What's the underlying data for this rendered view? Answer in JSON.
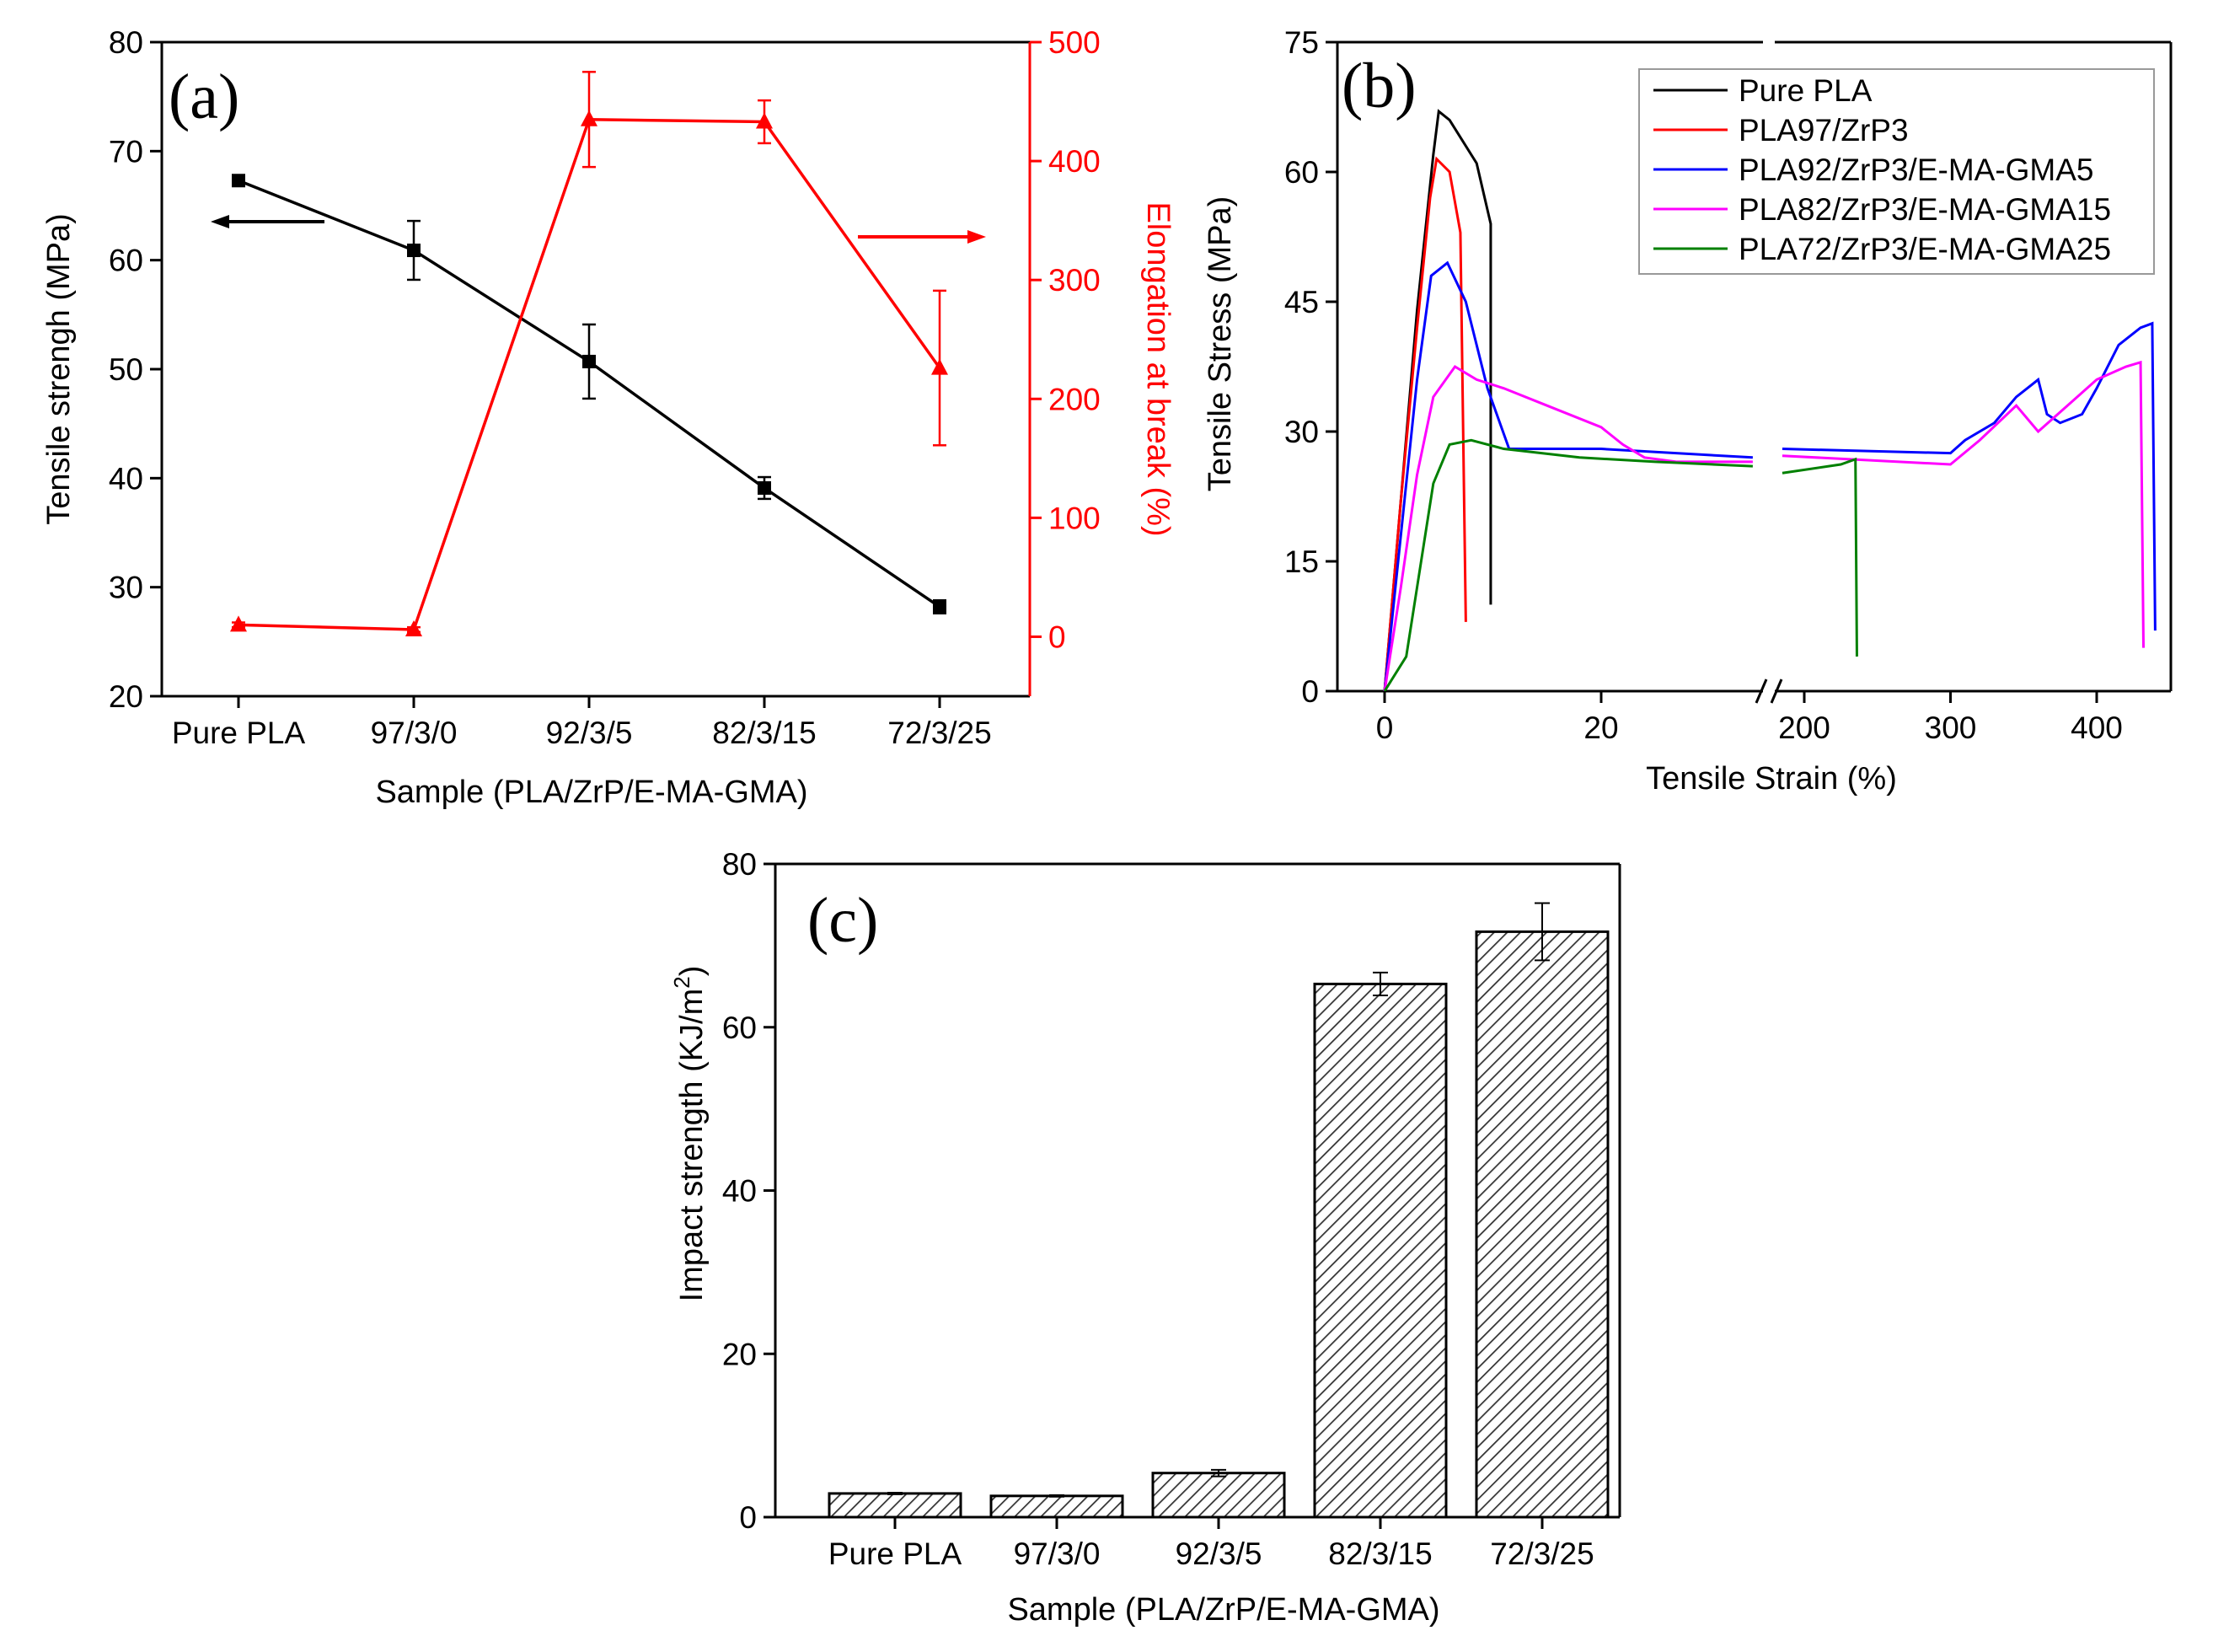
{
  "chart_data": [
    {
      "panel": "(a)",
      "type": "line",
      "categories": [
        "Pure PLA",
        "97/3/0",
        "92/3/5",
        "82/3/15",
        "72/3/25"
      ],
      "xlabel": "Sample (PLA/ZrP/E-MA-GMA)",
      "ylabel": "Tensile strengh (MPa)",
      "ylim": [
        20,
        80
      ],
      "yticks": [
        20,
        30,
        40,
        50,
        60,
        70,
        80
      ],
      "y2label": "Elongation at break (%)",
      "y2lim": [
        -50,
        500
      ],
      "y2ticks": [
        0,
        100,
        200,
        300,
        400,
        500
      ],
      "series": [
        {
          "name": "Tensile strength",
          "axis": "left",
          "color": "#000000",
          "marker": "square",
          "values": [
            67.3,
            60.9,
            50.7,
            39.1,
            28.2
          ],
          "errors": [
            0.4,
            2.7,
            3.4,
            1.0,
            0.6
          ]
        },
        {
          "name": "Elongation at break",
          "axis": "right",
          "color": "#ff0000",
          "marker": "triangle",
          "values": [
            10,
            6,
            435,
            433,
            226
          ],
          "errors": [
            2,
            2,
            40,
            18,
            65
          ]
        }
      ]
    },
    {
      "panel": "(b)",
      "type": "line",
      "xlabel": "Tensile Strain (%)",
      "ylabel": "Tensile Stress (MPa)",
      "ylim": [
        0,
        75
      ],
      "yticks": [
        0,
        15,
        30,
        45,
        60,
        75
      ],
      "x_segments": [
        [
          -4,
          34
        ],
        [
          170,
          450
        ]
      ],
      "xticks": [
        0,
        20,
        200,
        300,
        400
      ],
      "series": [
        {
          "name": "Pure PLA",
          "color": "#000000",
          "points": [
            [
              0,
              0
            ],
            [
              1.5,
              22
            ],
            [
              3,
              44
            ],
            [
              4.5,
              62
            ],
            [
              5,
              67
            ],
            [
              6,
              66
            ],
            [
              8.5,
              61
            ],
            [
              9.8,
              54
            ],
            [
              9.8,
              10
            ]
          ]
        },
        {
          "name": "PLA97/ZrP3",
          "color": "#ff0000",
          "points": [
            [
              0,
              0
            ],
            [
              1.5,
              22
            ],
            [
              3,
              42
            ],
            [
              4.2,
              57
            ],
            [
              4.8,
              61.5
            ],
            [
              6,
              60
            ],
            [
              7,
              53
            ],
            [
              7.5,
              8
            ]
          ]
        },
        {
          "name": "PLA92/ZrP3/E-MA-GMA5",
          "color": "#0000ff",
          "points": [
            [
              0,
              0
            ],
            [
              1.5,
              18
            ],
            [
              3,
              36
            ],
            [
              4.3,
              48
            ],
            [
              5.8,
              49.5
            ],
            [
              7.5,
              45
            ],
            [
              9.5,
              35
            ],
            [
              11.5,
              28
            ],
            [
              20,
              28
            ],
            [
              34,
              27
            ],
            [
              185,
              28
            ],
            [
              300,
              27.5
            ],
            [
              310,
              29
            ],
            [
              330,
              31
            ],
            [
              345,
              34
            ],
            [
              360,
              36
            ],
            [
              366,
              32
            ],
            [
              375,
              31
            ],
            [
              390,
              32
            ],
            [
              400,
              35
            ],
            [
              415,
              40
            ],
            [
              430,
              42
            ],
            [
              438,
              42.5
            ],
            [
              440,
              7
            ]
          ]
        },
        {
          "name": "PLA82/ZrP3/E-MA-GMA15",
          "color": "#ff00ff",
          "points": [
            [
              0,
              0
            ],
            [
              1.5,
              12
            ],
            [
              3,
              25
            ],
            [
              4.5,
              34
            ],
            [
              6.5,
              37.5
            ],
            [
              8.5,
              36
            ],
            [
              11,
              35
            ],
            [
              15,
              33
            ],
            [
              20,
              30.5
            ],
            [
              22,
              28.5
            ],
            [
              24,
              27
            ],
            [
              27,
              26.5
            ],
            [
              34,
              26.5
            ],
            [
              185,
              27.2
            ],
            [
              300,
              26.2
            ],
            [
              320,
              29
            ],
            [
              345,
              33
            ],
            [
              360,
              30
            ],
            [
              380,
              33
            ],
            [
              400,
              36
            ],
            [
              420,
              37.5
            ],
            [
              430,
              38
            ],
            [
              432,
              5
            ]
          ]
        },
        {
          "name": "PLA72/ZrP3/E-MA-GMA25",
          "color": "#008000",
          "points": [
            [
              0,
              0
            ],
            [
              2,
              4
            ],
            [
              3,
              12
            ],
            [
              4.5,
              24
            ],
            [
              6,
              28.5
            ],
            [
              8,
              29
            ],
            [
              11,
              28
            ],
            [
              18,
              27
            ],
            [
              25,
              26.5
            ],
            [
              34,
              26
            ],
            [
              185,
              25.2
            ],
            [
              225,
              26.2
            ],
            [
              235,
              26.8
            ],
            [
              236,
              4
            ]
          ]
        }
      ]
    },
    {
      "panel": "(c)",
      "type": "bar",
      "categories": [
        "Pure PLA",
        "97/3/0",
        "92/3/5",
        "82/3/15",
        "72/3/25"
      ],
      "values": [
        2.9,
        2.6,
        5.4,
        65.3,
        71.7
      ],
      "errors": [
        0.1,
        0.1,
        0.4,
        1.4,
        3.5
      ],
      "xlabel": "Sample (PLA/ZrP/E-MA-GMA)",
      "ylabel": "Impact strength (KJ/m",
      "ylabel_superscript": "2",
      "ylabel_close": ")",
      "ylim": [
        0,
        80
      ],
      "yticks": [
        0,
        20,
        40,
        60,
        80
      ]
    }
  ]
}
